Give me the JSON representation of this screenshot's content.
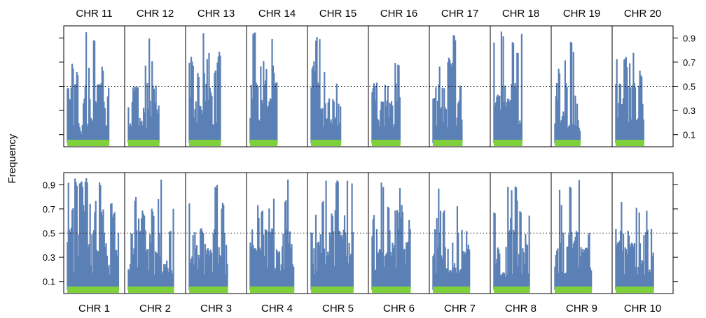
{
  "chart_data": {
    "type": "bar",
    "ylabel": "Frequency",
    "ylim": [
      0,
      1
    ],
    "yticks": [
      0.1,
      0.3,
      0.5,
      0.7,
      0.9
    ],
    "yticklabels": [
      "0.1",
      "0.3",
      "0.5",
      "0.7",
      "0.9"
    ],
    "reference_line": 0.5,
    "colors": {
      "bars": "#5b80b5",
      "chromosome_bar": "#7fd13b",
      "reference_line": "#000000"
    },
    "rows": [
      {
        "position": "top",
        "label_side": "top",
        "ytick_side": "right",
        "panels": [
          {
            "label": "CHR 11",
            "length": 0.78
          },
          {
            "label": "CHR 12",
            "length": 0.58
          },
          {
            "label": "CHR 13",
            "length": 0.59
          },
          {
            "label": "CHR 14",
            "length": 0.51
          },
          {
            "label": "CHR 15",
            "length": 0.56
          },
          {
            "label": "CHR 16",
            "length": 0.53
          },
          {
            "label": "CHR 17",
            "length": 0.55
          },
          {
            "label": "CHR 18",
            "length": 0.53
          },
          {
            "label": "CHR 19",
            "length": 0.48
          },
          {
            "label": "CHR 20",
            "length": 0.53
          }
        ]
      },
      {
        "position": "bottom",
        "label_side": "bottom",
        "ytick_side": "left",
        "panels": [
          {
            "label": "CHR 1",
            "length": 0.96
          },
          {
            "label": "CHR 2",
            "length": 0.85
          },
          {
            "label": "CHR 3",
            "length": 0.72
          },
          {
            "label": "CHR 4",
            "length": 0.82
          },
          {
            "label": "CHR 5",
            "length": 0.79
          },
          {
            "label": "CHR 6",
            "length": 0.72
          },
          {
            "label": "CHR 7",
            "length": 0.69
          },
          {
            "label": "CHR 8",
            "length": 0.67
          },
          {
            "label": "CHR 9",
            "length": 0.69
          },
          {
            "label": "CHR 10",
            "length": 0.71
          }
        ]
      }
    ]
  }
}
